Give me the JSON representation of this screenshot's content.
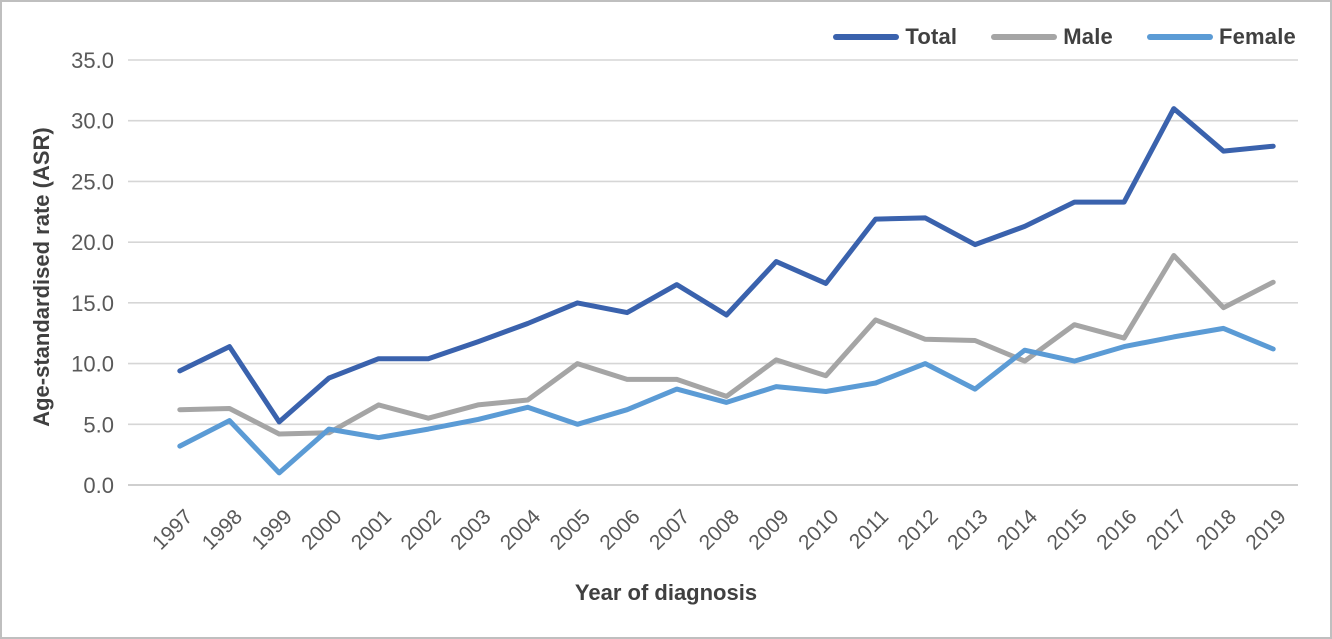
{
  "chart_data": {
    "type": "line",
    "title": "",
    "xlabel": "Year of diagnosis",
    "ylabel": "Age-standardised rate (ASR)",
    "ylim": [
      0,
      35
    ],
    "ytick_step": 5,
    "grid": "horizontal-only",
    "legend_position": "top-right",
    "legend_entries": [
      "Total",
      "Male",
      "Female"
    ],
    "categories": [
      "1997",
      "1998",
      "1999",
      "2000",
      "2001",
      "2002",
      "2003",
      "2004",
      "2005",
      "2006",
      "2007",
      "2008",
      "2009",
      "2010",
      "2011",
      "2012",
      "2013",
      "2014",
      "2015",
      "2016",
      "2017",
      "2018",
      "2019"
    ],
    "series": [
      {
        "name": "Total",
        "color": "#3A62AD",
        "values": [
          9.4,
          11.4,
          5.2,
          8.8,
          10.4,
          10.4,
          11.8,
          13.3,
          15.0,
          14.2,
          16.5,
          14.0,
          18.4,
          16.6,
          21.9,
          22.0,
          19.8,
          21.3,
          23.3,
          23.3,
          31.0,
          27.5,
          27.9
        ]
      },
      {
        "name": "Male",
        "color": "#A5A5A5",
        "values": [
          6.2,
          6.3,
          4.2,
          4.3,
          6.6,
          5.5,
          6.6,
          7.0,
          10.0,
          8.7,
          8.7,
          7.3,
          10.3,
          9.0,
          13.6,
          12.0,
          11.9,
          10.2,
          13.2,
          12.1,
          18.9,
          14.6,
          16.7
        ]
      },
      {
        "name": "Female",
        "color": "#5B9BD5",
        "values": [
          3.2,
          5.3,
          1.0,
          4.6,
          3.9,
          4.6,
          5.4,
          6.4,
          5.0,
          6.2,
          7.9,
          6.8,
          8.1,
          7.7,
          8.4,
          10.0,
          7.9,
          11.1,
          10.2,
          11.4,
          12.2,
          12.9,
          11.2
        ]
      }
    ],
    "axis_colors": {
      "gridline": "#D6D6D6",
      "zero_line": "#BFBFBF",
      "tick_label": "#595959",
      "axis_title": "#404040"
    }
  }
}
